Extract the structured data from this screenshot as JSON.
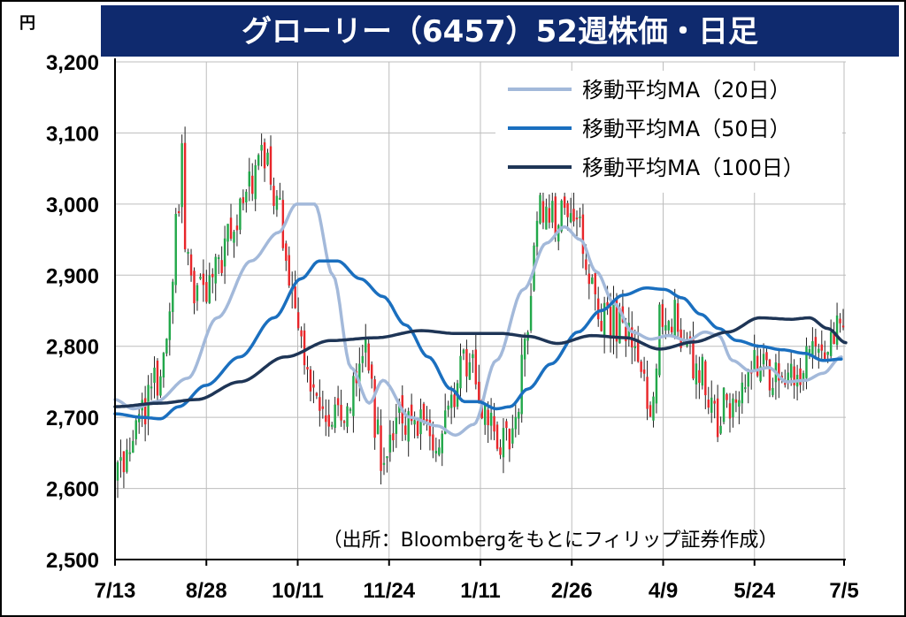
{
  "chart_data": {
    "type": "candlestick",
    "title": "グローリー（6457）52週株価・日足",
    "yunit": "円",
    "source": "（出所：Bloombergをもとにフィリップ証券作成）",
    "ylim": [
      2500,
      3200
    ],
    "yticks": [
      2500,
      2600,
      2700,
      2800,
      2900,
      3000,
      3100,
      3200
    ],
    "ytick_labels": [
      "2,500",
      "2,600",
      "2,700",
      "2,800",
      "2,900",
      "3,000",
      "3,100",
      "3,200"
    ],
    "xtick_labels": [
      "7/13",
      "8/28",
      "10/11",
      "11/24",
      "1/11",
      "2/26",
      "4/9",
      "5/24",
      "7/5"
    ],
    "grid": true,
    "legend_position": "top-right",
    "colors": {
      "title_bg": "#0f2a6e",
      "title_text": "#ffffff",
      "up": "#22a84a",
      "down": "#e8262a",
      "grid": "#bdbdbd",
      "border": "#000000"
    },
    "series": [
      {
        "name": "移動平均MA（20日）",
        "color": "#a3b9da",
        "anchors": [
          [
            0,
            2725
          ],
          [
            8,
            2712
          ],
          [
            18,
            2722
          ],
          [
            32,
            2755
          ],
          [
            45,
            2840
          ],
          [
            60,
            2920
          ],
          [
            72,
            2960
          ],
          [
            80,
            3000
          ],
          [
            88,
            3000
          ],
          [
            96,
            2900
          ],
          [
            104,
            2770
          ],
          [
            112,
            2720
          ],
          [
            118,
            2752
          ],
          [
            130,
            2700
          ],
          [
            142,
            2688
          ],
          [
            150,
            2675
          ],
          [
            158,
            2690
          ],
          [
            168,
            2780
          ],
          [
            180,
            2880
          ],
          [
            190,
            2945
          ],
          [
            198,
            2968
          ],
          [
            205,
            2950
          ],
          [
            212,
            2905
          ],
          [
            220,
            2860
          ],
          [
            228,
            2820
          ],
          [
            236,
            2810
          ],
          [
            244,
            2815
          ],
          [
            252,
            2808
          ],
          [
            260,
            2820
          ],
          [
            266,
            2815
          ],
          [
            272,
            2780
          ],
          [
            280,
            2765
          ],
          [
            288,
            2770
          ],
          [
            296,
            2750
          ],
          [
            304,
            2752
          ],
          [
            312,
            2762
          ],
          [
            320,
            2785
          ]
        ]
      },
      {
        "name": "移動平均MA（50日）",
        "color": "#1a6fbf",
        "anchors": [
          [
            0,
            2705
          ],
          [
            12,
            2700
          ],
          [
            20,
            2698
          ],
          [
            28,
            2715
          ],
          [
            40,
            2745
          ],
          [
            55,
            2785
          ],
          [
            70,
            2840
          ],
          [
            82,
            2895
          ],
          [
            90,
            2920
          ],
          [
            98,
            2920
          ],
          [
            108,
            2895
          ],
          [
            118,
            2870
          ],
          [
            128,
            2830
          ],
          [
            138,
            2785
          ],
          [
            148,
            2740
          ],
          [
            154,
            2722
          ],
          [
            160,
            2722
          ],
          [
            168,
            2712
          ],
          [
            174,
            2715
          ],
          [
            182,
            2740
          ],
          [
            192,
            2775
          ],
          [
            204,
            2820
          ],
          [
            214,
            2850
          ],
          [
            224,
            2872
          ],
          [
            234,
            2882
          ],
          [
            242,
            2880
          ],
          [
            250,
            2868
          ],
          [
            258,
            2845
          ],
          [
            266,
            2825
          ],
          [
            274,
            2808
          ],
          [
            284,
            2800
          ],
          [
            294,
            2795
          ],
          [
            304,
            2790
          ],
          [
            312,
            2780
          ],
          [
            320,
            2782
          ]
        ]
      },
      {
        "name": "移動平均MA（100日）",
        "color": "#1e3556",
        "anchors": [
          [
            0,
            2715
          ],
          [
            20,
            2720
          ],
          [
            36,
            2725
          ],
          [
            55,
            2750
          ],
          [
            75,
            2785
          ],
          [
            95,
            2808
          ],
          [
            115,
            2812
          ],
          [
            135,
            2822
          ],
          [
            150,
            2818
          ],
          [
            170,
            2818
          ],
          [
            182,
            2814
          ],
          [
            195,
            2804
          ],
          [
            210,
            2815
          ],
          [
            225,
            2812
          ],
          [
            240,
            2796
          ],
          [
            255,
            2806
          ],
          [
            270,
            2820
          ],
          [
            284,
            2840
          ],
          [
            298,
            2838
          ],
          [
            306,
            2840
          ],
          [
            314,
            2825
          ],
          [
            322,
            2805
          ]
        ]
      }
    ],
    "candles_path": {
      "anchors": [
        [
          0,
          2610
        ],
        [
          5,
          2640
        ],
        [
          10,
          2680
        ],
        [
          15,
          2720
        ],
        [
          20,
          2745
        ],
        [
          25,
          2800
        ],
        [
          28,
          2870
        ],
        [
          32,
          3000
        ],
        [
          34,
          3090
        ],
        [
          36,
          2950
        ],
        [
          40,
          2880
        ],
        [
          46,
          2870
        ],
        [
          52,
          2900
        ],
        [
          58,
          2960
        ],
        [
          64,
          2990
        ],
        [
          70,
          3020
        ],
        [
          74,
          3050
        ],
        [
          78,
          3080
        ],
        [
          82,
          3010
        ],
        [
          86,
          2980
        ],
        [
          90,
          2920
        ],
        [
          94,
          2850
        ],
        [
          98,
          2780
        ],
        [
          104,
          2720
        ],
        [
          110,
          2700
        ],
        [
          116,
          2690
        ],
        [
          122,
          2720
        ],
        [
          128,
          2760
        ],
        [
          132,
          2790
        ],
        [
          136,
          2700
        ],
        [
          140,
          2640
        ],
        [
          144,
          2660
        ],
        [
          150,
          2700
        ],
        [
          156,
          2700
        ],
        [
          162,
          2690
        ],
        [
          168,
          2660
        ],
        [
          172,
          2680
        ],
        [
          178,
          2720
        ],
        [
          184,
          2780
        ],
        [
          188,
          2780
        ],
        [
          192,
          2730
        ],
        [
          196,
          2700
        ],
        [
          200,
          2680
        ],
        [
          206,
          2660
        ],
        [
          210,
          2690
        ],
        [
          214,
          2760
        ],
        [
          218,
          2850
        ],
        [
          220,
          2920
        ],
        [
          222,
          3000
        ],
        [
          226,
          2990
        ],
        [
          232,
          2980
        ],
        [
          238,
          2970
        ],
        [
          244,
          2960
        ],
        [
          248,
          2920
        ],
        [
          252,
          2880
        ],
        [
          256,
          2850
        ],
        [
          260,
          2840
        ],
        [
          264,
          2830
        ],
        [
          270,
          2810
        ],
        [
          274,
          2780
        ],
        [
          278,
          2740
        ],
        [
          282,
          2720
        ],
        [
          288,
          2850
        ],
        [
          294,
          2840
        ],
        [
          300,
          2820
        ],
        [
          304,
          2780
        ],
        [
          310,
          2760
        ],
        [
          314,
          2700
        ],
        [
          318,
          2690
        ],
        [
          322,
          2720
        ],
        [
          326,
          2730
        ],
        [
          330,
          2740
        ],
        [
          334,
          2780
        ],
        [
          340,
          2780
        ],
        [
          346,
          2760
        ],
        [
          352,
          2750
        ],
        [
          358,
          2760
        ],
        [
          364,
          2780
        ],
        [
          370,
          2800
        ],
        [
          376,
          2810
        ],
        [
          380,
          2820
        ],
        [
          384,
          2810
        ]
      ],
      "count": 238
    }
  }
}
